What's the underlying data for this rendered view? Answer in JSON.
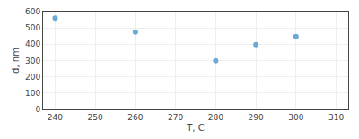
{
  "chart_data": {
    "type": "scatter",
    "xlabel": "T, C",
    "ylabel": "d, nm",
    "x": [
      240,
      260,
      280,
      290,
      300
    ],
    "values": [
      560,
      475,
      298,
      398,
      447
    ],
    "color": "#6aaad4",
    "xlim": [
      237,
      313
    ],
    "xticks": [
      240,
      250,
      260,
      270,
      280,
      290,
      300,
      310
    ],
    "ylim": [
      0,
      600
    ],
    "yticks": [
      0,
      100,
      200,
      300,
      400,
      500,
      600
    ],
    "grid": true
  }
}
